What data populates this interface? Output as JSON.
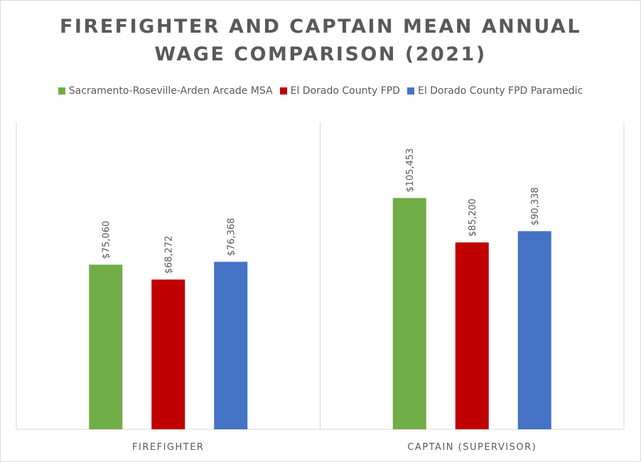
{
  "chart_data": {
    "type": "bar",
    "title": "FIREFIGHTER AND CAPTAIN MEAN ANNUAL\nWAGE COMPARISON (2021)",
    "categories": [
      "FIREFIGHTER",
      "CAPTAIN (SUPERVISOR)"
    ],
    "series": [
      {
        "name": "Sacramento-Roseville-Arden Arcade MSA",
        "color": "#70ad47",
        "values": [
          75060,
          105453
        ],
        "labels": [
          "$75,060",
          "$105,453"
        ]
      },
      {
        "name": "El Dorado County FPD",
        "color": "#c00000",
        "values": [
          68272,
          85200
        ],
        "labels": [
          "$68,272",
          "$85,200"
        ]
      },
      {
        "name": "El Dorado County FPD Paramedic",
        "color": "#4472c4",
        "values": [
          76368,
          90338
        ],
        "labels": [
          "$76,368",
          "$90,338"
        ]
      }
    ],
    "ylim": [
      0,
      140000
    ],
    "grid": false,
    "legend_position": "top",
    "data_label_rotation": "vertical"
  }
}
